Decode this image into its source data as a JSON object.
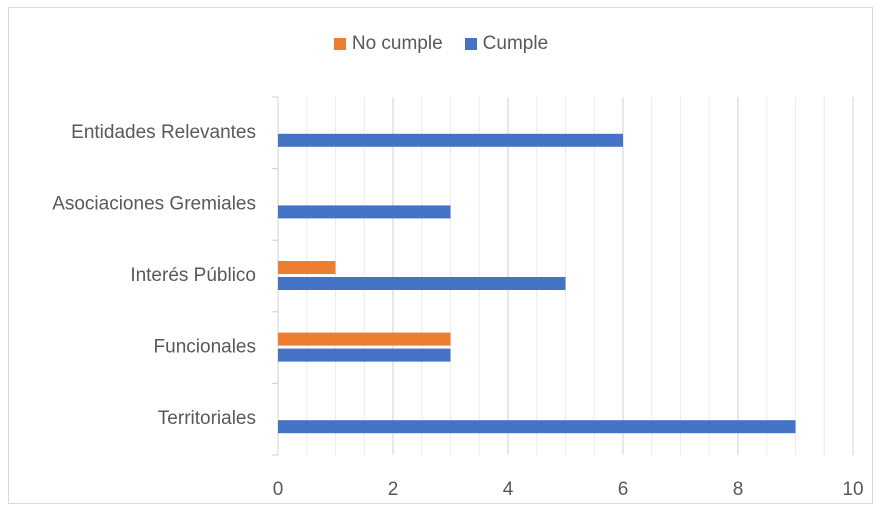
{
  "chart_data": {
    "type": "bar",
    "orientation": "horizontal",
    "categories": [
      "Entidades Relevantes",
      "Asociaciones Gremiales",
      "Interés Público",
      "Funcionales",
      "Territoriales"
    ],
    "series": [
      {
        "name": "No cumple",
        "color": "#ED7D31",
        "values": [
          0,
          0,
          1,
          3,
          0
        ]
      },
      {
        "name": "Cumple",
        "color": "#4472C4",
        "values": [
          6,
          3,
          5,
          3,
          9
        ]
      }
    ],
    "x_ticks": [
      "0",
      "2",
      "4",
      "6",
      "8",
      "10"
    ],
    "xlim": [
      0,
      10
    ],
    "minor_step": 0.5,
    "grid": true,
    "legend_position": "top",
    "title": "",
    "xlabel": "",
    "ylabel": ""
  }
}
